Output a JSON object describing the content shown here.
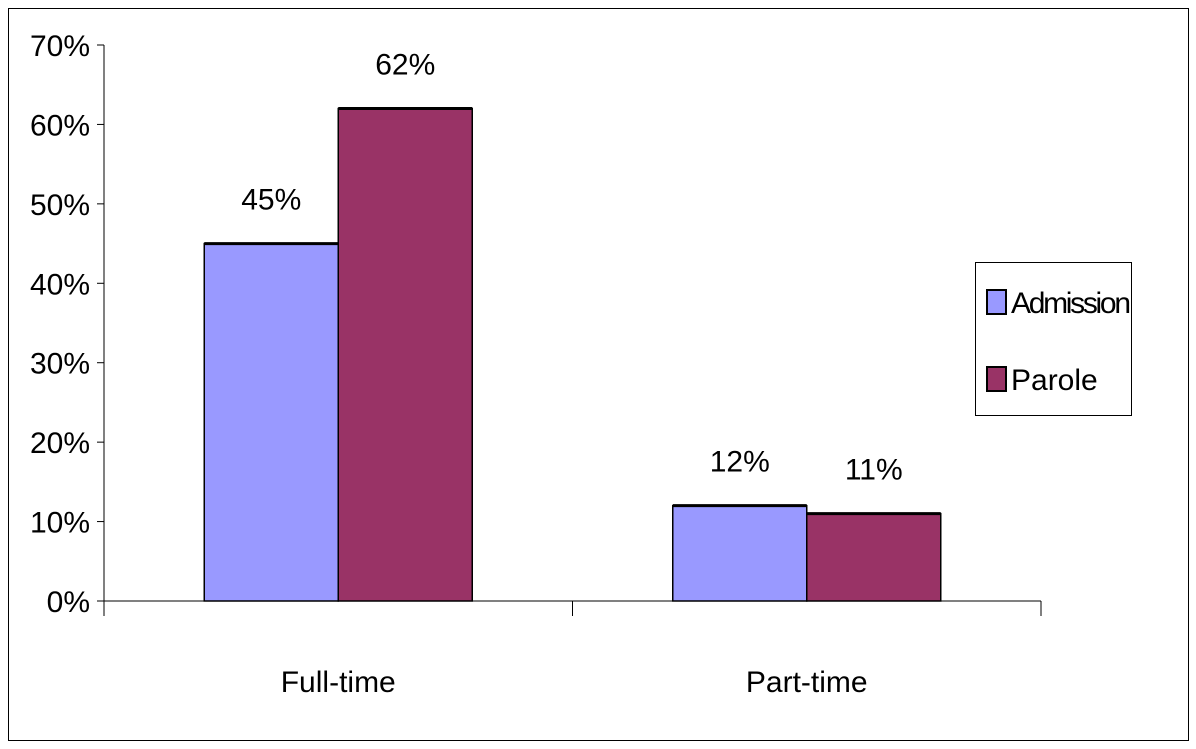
{
  "chart_data": {
    "type": "bar",
    "categories": [
      "Full-time",
      "Part-time"
    ],
    "series": [
      {
        "name": "Admission",
        "values": [
          45,
          12
        ],
        "color": "#9999ff"
      },
      {
        "name": "Parole",
        "values": [
          62,
          11
        ],
        "color": "#993366"
      }
    ],
    "data_labels": [
      [
        "45%",
        "12%"
      ],
      [
        "62%",
        "11%"
      ]
    ],
    "ylim": [
      0,
      70
    ],
    "yticks": [
      0,
      10,
      20,
      30,
      40,
      50,
      60,
      70
    ],
    "ytick_labels": [
      "0%",
      "10%",
      "20%",
      "30%",
      "40%",
      "50%",
      "60%",
      "70%"
    ],
    "grid": false,
    "legend_position": "right"
  }
}
